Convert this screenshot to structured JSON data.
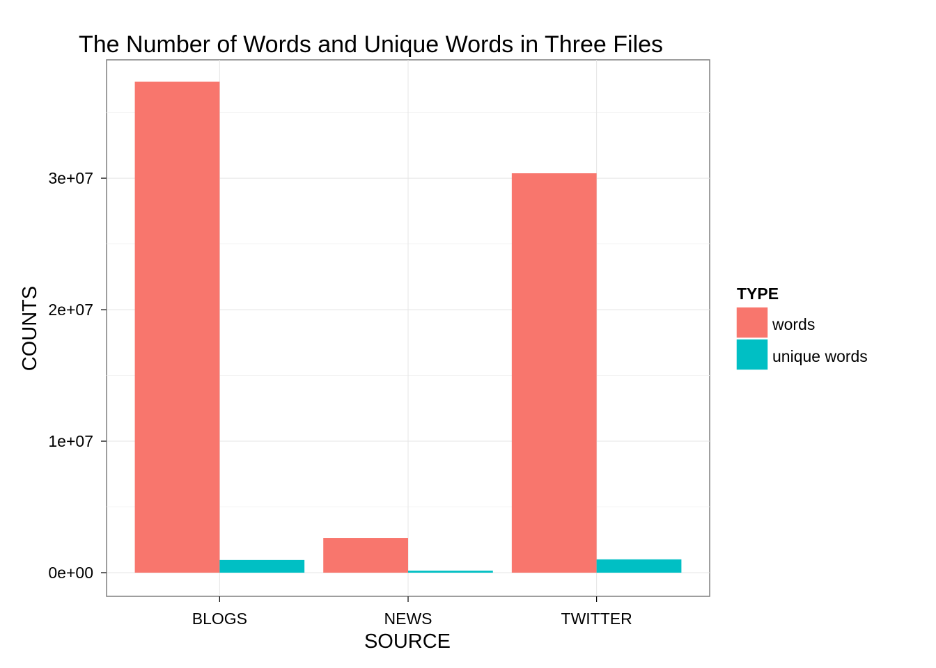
{
  "chart_data": {
    "type": "bar",
    "title": "The Number of Words and Unique Words in Three Files",
    "xlabel": "SOURCE",
    "ylabel": "COUNTS",
    "categories": [
      "BLOGS",
      "NEWS",
      "TWITTER"
    ],
    "series": [
      {
        "name": "words",
        "color": "#F8766D",
        "values": [
          37334000,
          2643000,
          30373000
        ]
      },
      {
        "name": "unique words",
        "color": "#00BFC4",
        "values": [
          960000,
          150000,
          1010000
        ]
      }
    ],
    "ylim": [
      -1800000,
      39000000
    ],
    "yticks": [
      0,
      10000000,
      20000000,
      30000000
    ],
    "ytick_labels": [
      "0e+00",
      "1e+07",
      "2e+07",
      "3e+07"
    ],
    "legend": {
      "title": "TYPE",
      "position": "right"
    },
    "grid": true
  }
}
